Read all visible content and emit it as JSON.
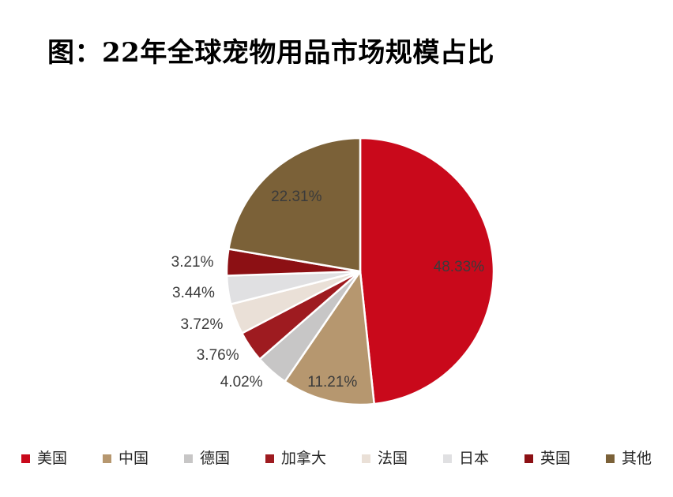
{
  "title": "图：22年全球宠物用品市场规模占比",
  "chart_data": {
    "type": "pie",
    "title": "图：22年全球宠物用品市场规模占比",
    "categories": [
      "美国",
      "中国",
      "德国",
      "加拿大",
      "法国",
      "日本",
      "英国",
      "其他"
    ],
    "values": [
      48.33,
      11.21,
      4.02,
      3.76,
      3.72,
      3.44,
      3.21,
      22.31
    ],
    "slice_labels": [
      "48.33%",
      "11.21%",
      "4.02%",
      "3.76%",
      "3.72%",
      "3.44%",
      "3.21%",
      "22.31%"
    ],
    "colors": [
      "#C9091B",
      "#B6976F",
      "#C7C6C6",
      "#9E1B20",
      "#EAE0D7",
      "#E0E0E2",
      "#8C1014",
      "#7B6138"
    ],
    "start_angle_deg": 0,
    "direction": "clockwise",
    "slice_border_color": "#FFFFFF",
    "label_color": "#3B3B3B",
    "legend_position": "bottom",
    "background_color": "#FFFFFF"
  }
}
